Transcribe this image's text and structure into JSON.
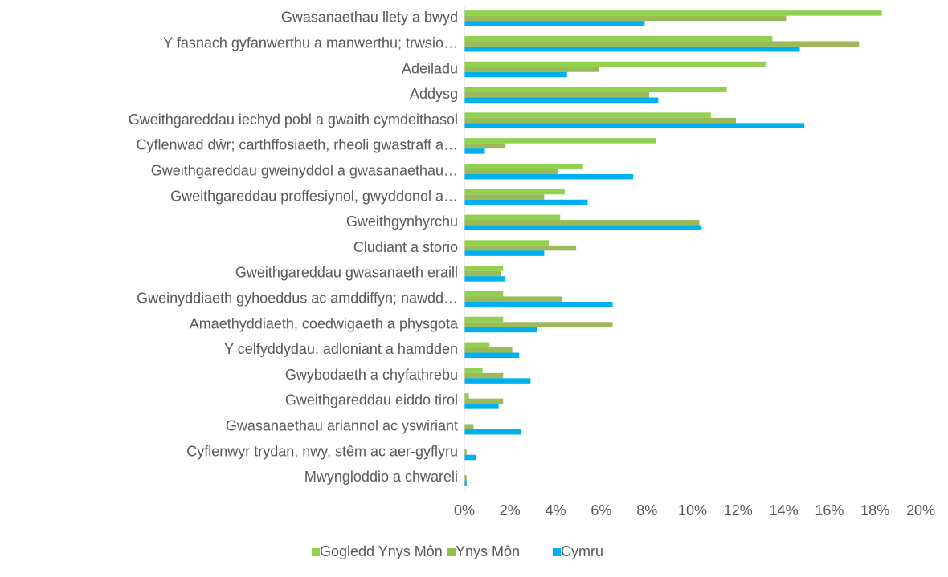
{
  "chart_data": {
    "type": "barh",
    "categories": [
      "Gwasanaethau llety a bwyd",
      "Y fasnach gyfanwerthu a manwerthu; trwsio…",
      "Adeiladu",
      "Addysg",
      "Gweithgareddau iechyd pobl a gwaith cymdeithasol",
      "Cyflenwad dŵr; carthffosiaeth, rheoli gwastraff a…",
      "Gweithgareddau gweinyddol a gwasanaethau…",
      "Gweithgareddau proffesiynol, gwyddonol a…",
      "Gweithgynhyrchu",
      "Cludiant a storio",
      "Gweithgareddau gwasanaeth eraill",
      "Gweinyddiaeth gyhoeddus ac amddiffyn; nawdd…",
      "Amaethyddiaeth, coedwigaeth a physgota",
      "Y celfyddydau, adloniant a hamdden",
      "Gwybodaeth a chyfathrebu",
      "Gweithgareddau eiddo tirol",
      "Gwasanaethau ariannol ac yswiriant",
      "Cyflenwyr trydan, nwy, stêm ac aer-gyflyru",
      "Mwyngloddio a chwareli"
    ],
    "series": [
      {
        "name": "Gogledd Ynys Môn",
        "color": "#92d050",
        "values": [
          18.3,
          13.5,
          13.2,
          11.5,
          10.8,
          8.4,
          5.2,
          4.4,
          4.2,
          3.7,
          1.7,
          1.7,
          1.7,
          1.1,
          0.8,
          0.2,
          0,
          0,
          0
        ]
      },
      {
        "name": "Ynys Môn",
        "color": "#9bbb59",
        "values": [
          14.1,
          17.3,
          5.9,
          8.1,
          11.9,
          1.8,
          4.1,
          3.5,
          10.3,
          4.9,
          1.6,
          4.3,
          6.5,
          2.1,
          1.7,
          1.7,
          0.4,
          0.1,
          0.1
        ]
      },
      {
        "name": "Cymru",
        "color": "#00b0f0",
        "values": [
          7.9,
          14.7,
          4.5,
          8.5,
          14.9,
          0.9,
          7.4,
          5.4,
          10.4,
          3.5,
          1.8,
          6.5,
          3.2,
          2.4,
          2.9,
          1.5,
          2.5,
          0.5,
          0.1
        ]
      }
    ],
    "xlim": [
      0,
      20
    ],
    "xticks": [
      {
        "value": 0,
        "label": "0%"
      },
      {
        "value": 2,
        "label": "2%"
      },
      {
        "value": 4,
        "label": "4%"
      },
      {
        "value": 6,
        "label": "6%"
      },
      {
        "value": 8,
        "label": "8%"
      },
      {
        "value": 10,
        "label": "10%"
      },
      {
        "value": 12,
        "label": "12%"
      },
      {
        "value": 14,
        "label": "14%"
      },
      {
        "value": 16,
        "label": "16%"
      },
      {
        "value": 18,
        "label": "18%"
      },
      {
        "value": 20,
        "label": "20%"
      }
    ],
    "legend": "bottom"
  }
}
